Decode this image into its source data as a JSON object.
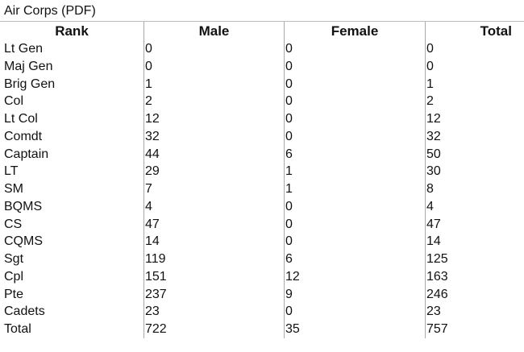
{
  "caption": "Air Corps (PDF)",
  "headers": [
    "Rank",
    "Male",
    "Female",
    "Total"
  ],
  "rows": [
    [
      "Lt Gen",
      "0",
      "0",
      "0"
    ],
    [
      "Maj Gen",
      "0",
      "0",
      "0"
    ],
    [
      "Brig Gen",
      "1",
      "0",
      "1"
    ],
    [
      "Col",
      "2",
      "0",
      "2"
    ],
    [
      "Lt Col",
      "12",
      "0",
      "12"
    ],
    [
      "Comdt",
      "32",
      "0",
      "32"
    ],
    [
      "Captain",
      "44",
      "6",
      "50"
    ],
    [
      "LT",
      "29",
      "1",
      "30"
    ],
    [
      "SM",
      "7",
      "1",
      "8"
    ],
    [
      "BQMS",
      "4",
      "0",
      "4"
    ],
    [
      "CS",
      "47",
      "0",
      "47"
    ],
    [
      "CQMS",
      "14",
      "0",
      "14"
    ],
    [
      "Sgt",
      "119",
      "6",
      "125"
    ],
    [
      "Cpl",
      "151",
      "12",
      "163"
    ],
    [
      "Pte",
      "237",
      "9",
      "246"
    ],
    [
      "Cadets",
      "23",
      "0",
      "23"
    ],
    [
      "Total",
      "722",
      "35",
      "757"
    ]
  ]
}
